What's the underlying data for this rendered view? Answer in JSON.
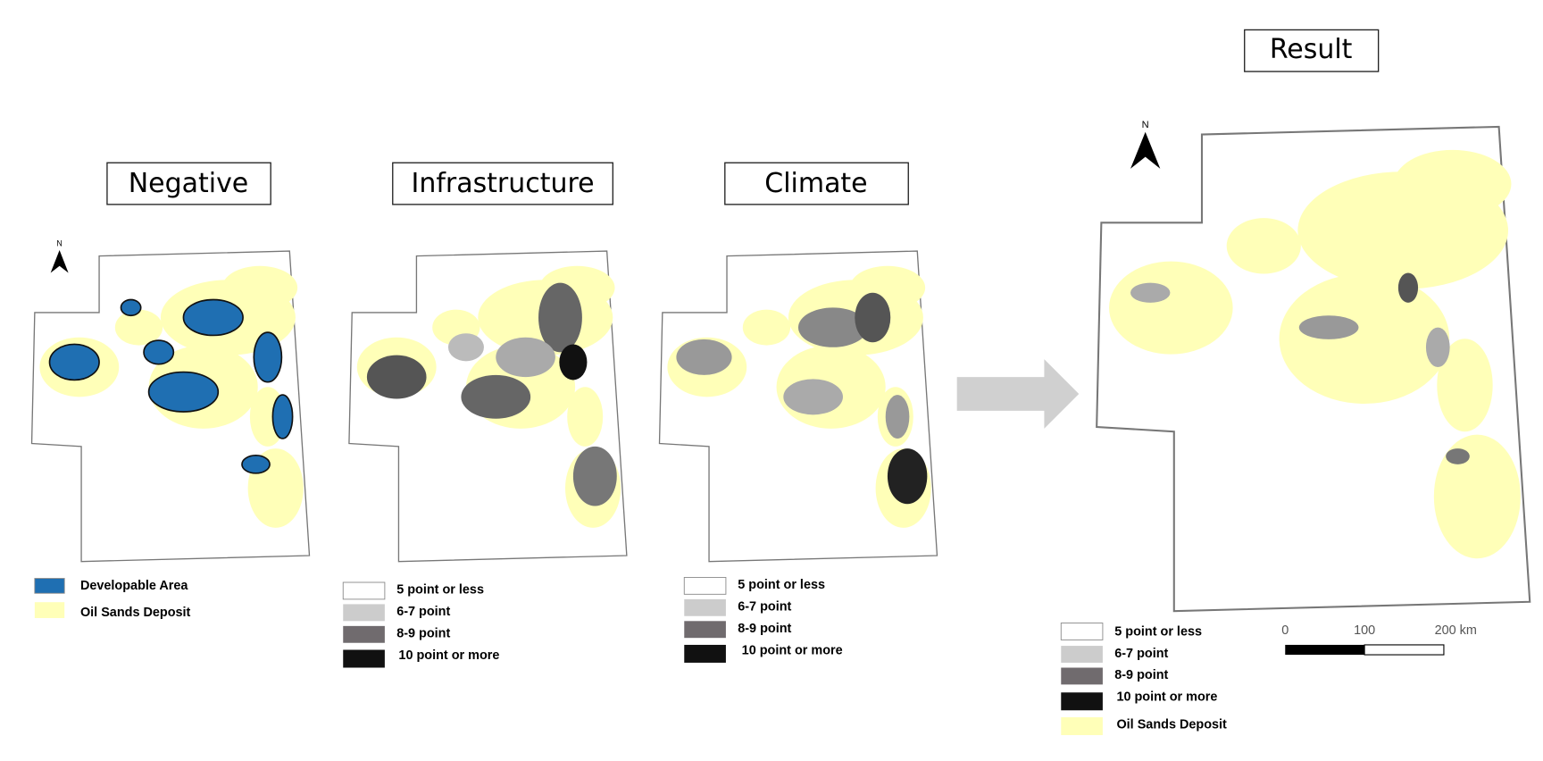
{
  "panels": [
    {
      "title": "Negative",
      "legend": [
        {
          "label": "Developable Area"
        },
        {
          "label": "Oil Sands Deposit"
        }
      ]
    },
    {
      "title": "Infrastructure",
      "legend": [
        {
          "label": "5 point or less"
        },
        {
          "label": "6-7 point"
        },
        {
          "label": "8-9 point"
        },
        {
          "label": "10 point or more"
        }
      ]
    },
    {
      "title": "Climate",
      "legend": [
        {
          "label": "5 point or less"
        },
        {
          "label": "6-7 point"
        },
        {
          "label": "8-9 point"
        },
        {
          "label": "10 point or more"
        }
      ]
    },
    {
      "title": "Result",
      "legend": [
        {
          "label": "5 point or less"
        },
        {
          "label": "6-7 point"
        },
        {
          "label": "8-9 point"
        },
        {
          "label": "10 point or more"
        },
        {
          "label": "Oil Sands Deposit"
        }
      ]
    }
  ],
  "north_label": "N",
  "scale_bar": {
    "labels": [
      "0",
      "100",
      "200 km"
    ]
  }
}
